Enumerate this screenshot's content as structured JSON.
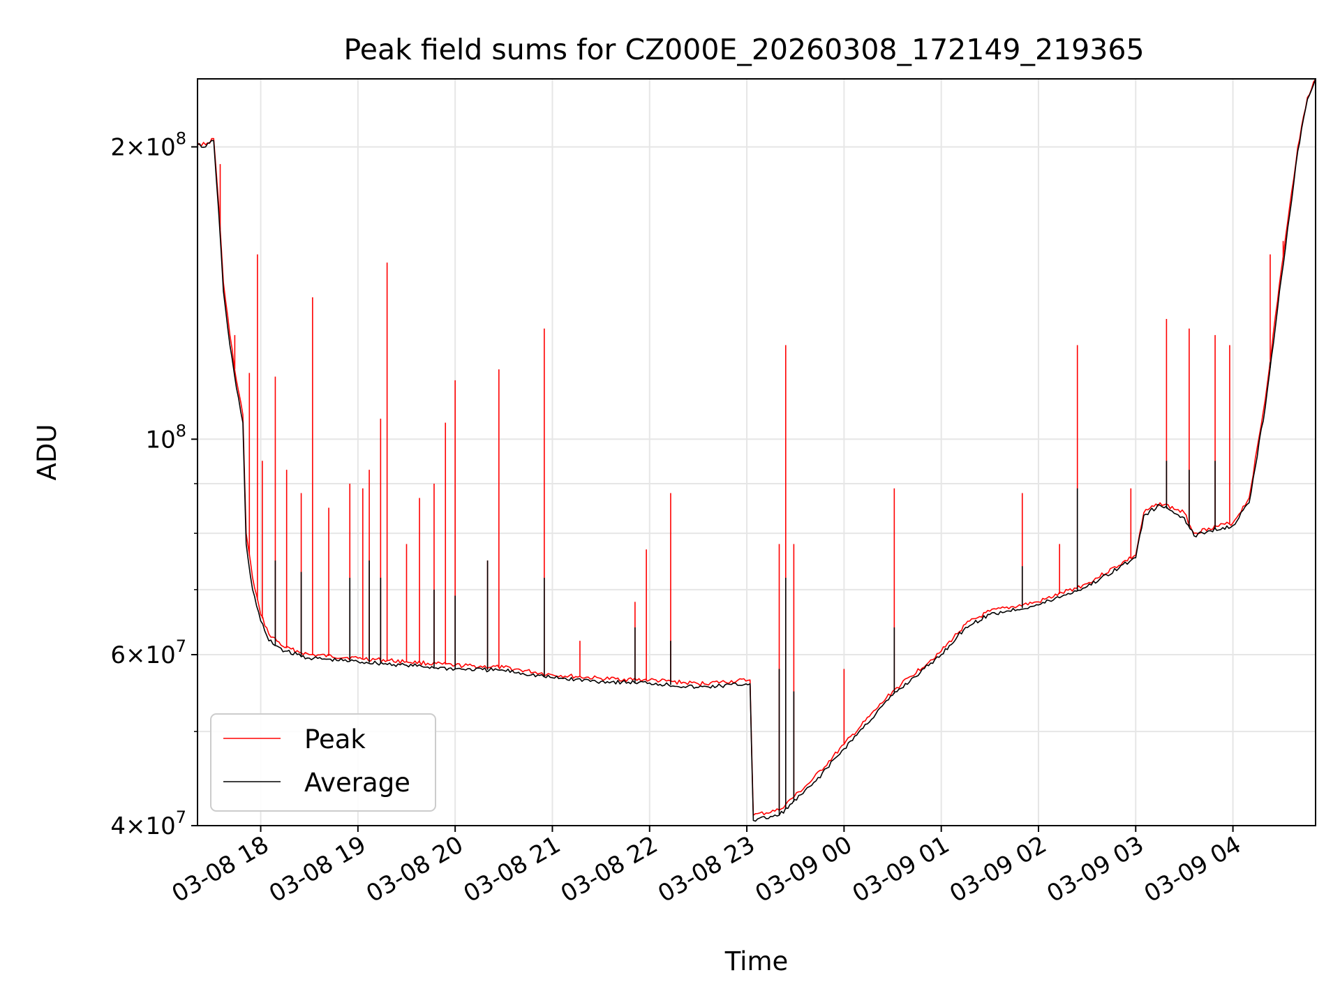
{
  "chart_data": {
    "type": "line",
    "title": "Peak field sums for CZ000E_20260308_172149_219365",
    "xlabel": "Time",
    "ylabel": "ADU",
    "y_scale": "log",
    "ylim": [
      40000000,
      235000000
    ],
    "xlim": [
      "2026-03-08 17:21",
      "2026-03-09 04:51"
    ],
    "grid": true,
    "legend_position": "lower-left",
    "x_ticks": [
      {
        "t": "2026-03-08 18:00",
        "label": "03-08 18"
      },
      {
        "t": "2026-03-08 19:00",
        "label": "03-08 19"
      },
      {
        "t": "2026-03-08 20:00",
        "label": "03-08 20"
      },
      {
        "t": "2026-03-08 21:00",
        "label": "03-08 21"
      },
      {
        "t": "2026-03-08 22:00",
        "label": "03-08 22"
      },
      {
        "t": "2026-03-08 23:00",
        "label": "03-08 23"
      },
      {
        "t": "2026-03-09 00:00",
        "label": "03-09 00"
      },
      {
        "t": "2026-03-09 01:00",
        "label": "03-09 01"
      },
      {
        "t": "2026-03-09 02:00",
        "label": "03-09 02"
      },
      {
        "t": "2026-03-09 03:00",
        "label": "03-09 03"
      },
      {
        "t": "2026-03-09 04:00",
        "label": "03-09 04"
      }
    ],
    "y_ticks": [
      {
        "value": 40000000,
        "mantissa": "4",
        "exp": "7"
      },
      {
        "value": 60000000,
        "mantissa": "6",
        "exp": "7"
      },
      {
        "value": 100000000,
        "mantissa": "",
        "exp": "8"
      },
      {
        "value": 200000000,
        "mantissa": "2",
        "exp": "8"
      }
    ],
    "y_minor_ticks": [
      50000000,
      70000000,
      80000000,
      90000000
    ],
    "series": [
      {
        "name": "Peak",
        "color": "#ff0000",
        "baseline": [
          [
            "2026-03-08 17:21",
            202000000
          ],
          [
            "2026-03-08 17:26",
            201000000
          ],
          [
            "2026-03-08 17:31",
            204000000
          ],
          [
            "2026-03-08 17:34",
            175000000
          ],
          [
            "2026-03-08 17:37",
            145000000
          ],
          [
            "2026-03-08 17:41",
            128000000
          ],
          [
            "2026-03-08 17:45",
            115000000
          ],
          [
            "2026-03-08 17:49",
            106000000
          ],
          [
            "2026-03-08 17:51",
            80000000
          ],
          [
            "2026-03-08 17:55",
            72000000
          ],
          [
            "2026-03-08 18:00",
            66000000
          ],
          [
            "2026-03-08 18:05",
            63000000
          ],
          [
            "2026-03-08 18:15",
            61000000
          ],
          [
            "2026-03-08 18:30",
            60000000
          ],
          [
            "2026-03-08 19:00",
            59500000
          ],
          [
            "2026-03-08 19:30",
            59000000
          ],
          [
            "2026-03-08 20:00",
            58500000
          ],
          [
            "2026-03-08 20:30",
            58200000
          ],
          [
            "2026-03-08 21:00",
            57200000
          ],
          [
            "2026-03-08 21:30",
            56700000
          ],
          [
            "2026-03-08 22:00",
            56500000
          ],
          [
            "2026-03-08 22:30",
            56000000
          ],
          [
            "2026-03-08 23:02",
            56500000
          ],
          [
            "2026-03-08 23:04",
            41000000
          ],
          [
            "2026-03-08 23:20",
            41500000
          ],
          [
            "2026-03-08 23:40",
            44500000
          ],
          [
            "2026-03-09 00:00",
            48500000
          ],
          [
            "2026-03-09 00:30",
            55000000
          ],
          [
            "2026-03-09 01:00",
            60500000
          ],
          [
            "2026-03-09 01:15",
            64500000
          ],
          [
            "2026-03-09 01:30",
            66500000
          ],
          [
            "2026-03-09 02:00",
            68000000
          ],
          [
            "2026-03-09 02:30",
            71000000
          ],
          [
            "2026-03-09 03:00",
            76000000
          ],
          [
            "2026-03-09 03:05",
            84000000
          ],
          [
            "2026-03-09 03:15",
            86000000
          ],
          [
            "2026-03-09 03:30",
            84000000
          ],
          [
            "2026-03-09 03:36",
            80000000
          ],
          [
            "2026-03-09 03:45",
            81000000
          ],
          [
            "2026-03-09 04:00",
            82000000
          ],
          [
            "2026-03-09 04:10",
            87000000
          ],
          [
            "2026-03-09 04:20",
            110000000
          ],
          [
            "2026-03-09 04:30",
            150000000
          ],
          [
            "2026-03-09 04:40",
            200000000
          ],
          [
            "2026-03-09 04:46",
            225000000
          ],
          [
            "2026-03-09 04:51",
            235000000
          ]
        ],
        "spikes": [
          [
            "2026-03-08 17:35",
            192000000
          ],
          [
            "2026-03-08 17:44",
            128000000
          ],
          [
            "2026-03-08 17:53",
            117000000
          ],
          [
            "2026-03-08 17:58",
            155000000
          ],
          [
            "2026-03-08 18:01",
            95000000
          ],
          [
            "2026-03-08 18:09",
            116000000
          ],
          [
            "2026-03-08 18:16",
            93000000
          ],
          [
            "2026-03-08 18:25",
            88000000
          ],
          [
            "2026-03-08 18:32",
            140000000
          ],
          [
            "2026-03-08 18:42",
            85000000
          ],
          [
            "2026-03-08 18:55",
            90000000
          ],
          [
            "2026-03-08 19:03",
            89000000
          ],
          [
            "2026-03-08 19:07",
            93000000
          ],
          [
            "2026-03-08 19:14",
            105000000
          ],
          [
            "2026-03-08 19:18",
            152000000
          ],
          [
            "2026-03-08 19:30",
            78000000
          ],
          [
            "2026-03-08 19:38",
            87000000
          ],
          [
            "2026-03-08 19:47",
            90000000
          ],
          [
            "2026-03-08 19:54",
            104000000
          ],
          [
            "2026-03-08 20:00",
            115000000
          ],
          [
            "2026-03-08 20:20",
            75000000
          ],
          [
            "2026-03-08 20:27",
            118000000
          ],
          [
            "2026-03-08 20:55",
            130000000
          ],
          [
            "2026-03-08 21:17",
            62000000
          ],
          [
            "2026-03-08 21:51",
            68000000
          ],
          [
            "2026-03-08 21:58",
            77000000
          ],
          [
            "2026-03-08 22:13",
            88000000
          ],
          [
            "2026-03-08 23:20",
            78000000
          ],
          [
            "2026-03-08 23:24",
            125000000
          ],
          [
            "2026-03-08 23:29",
            78000000
          ],
          [
            "2026-03-09 00:00",
            58000000
          ],
          [
            "2026-03-09 00:31",
            89000000
          ],
          [
            "2026-03-09 01:50",
            88000000
          ],
          [
            "2026-03-09 02:13",
            78000000
          ],
          [
            "2026-03-09 02:24",
            125000000
          ],
          [
            "2026-03-09 02:57",
            89000000
          ],
          [
            "2026-03-09 03:19",
            133000000
          ],
          [
            "2026-03-09 03:33",
            130000000
          ],
          [
            "2026-03-09 03:49",
            128000000
          ],
          [
            "2026-03-09 03:58",
            125000000
          ],
          [
            "2026-03-09 04:23",
            155000000
          ],
          [
            "2026-03-09 04:31",
            160000000
          ]
        ]
      },
      {
        "name": "Average",
        "color": "#000000",
        "baseline": [
          [
            "2026-03-08 17:21",
            201000000
          ],
          [
            "2026-03-08 17:26",
            200000000
          ],
          [
            "2026-03-08 17:31",
            203000000
          ],
          [
            "2026-03-08 17:34",
            172000000
          ],
          [
            "2026-03-08 17:37",
            142000000
          ],
          [
            "2026-03-08 17:41",
            125000000
          ],
          [
            "2026-03-08 17:45",
            113000000
          ],
          [
            "2026-03-08 17:49",
            104000000
          ],
          [
            "2026-03-08 17:51",
            78000000
          ],
          [
            "2026-03-08 17:55",
            70000000
          ],
          [
            "2026-03-08 18:00",
            65000000
          ],
          [
            "2026-03-08 18:05",
            62000000
          ],
          [
            "2026-03-08 18:15",
            60500000
          ],
          [
            "2026-03-08 18:30",
            59500000
          ],
          [
            "2026-03-08 19:00",
            59000000
          ],
          [
            "2026-03-08 19:30",
            58500000
          ],
          [
            "2026-03-08 20:00",
            58000000
          ],
          [
            "2026-03-08 20:30",
            57800000
          ],
          [
            "2026-03-08 21:00",
            56800000
          ],
          [
            "2026-03-08 21:30",
            56300000
          ],
          [
            "2026-03-08 22:00",
            56100000
          ],
          [
            "2026-03-08 22:30",
            55500000
          ],
          [
            "2026-03-08 23:02",
            56000000
          ],
          [
            "2026-03-08 23:04",
            40500000
          ],
          [
            "2026-03-08 23:20",
            41000000
          ],
          [
            "2026-03-08 23:40",
            44000000
          ],
          [
            "2026-03-09 00:00",
            48000000
          ],
          [
            "2026-03-09 00:30",
            54500000
          ],
          [
            "2026-03-09 01:00",
            60000000
          ],
          [
            "2026-03-09 01:15",
            64000000
          ],
          [
            "2026-03-09 01:30",
            66000000
          ],
          [
            "2026-03-09 02:00",
            67500000
          ],
          [
            "2026-03-09 02:30",
            70500000
          ],
          [
            "2026-03-09 03:00",
            75500000
          ],
          [
            "2026-03-09 03:05",
            83500000
          ],
          [
            "2026-03-09 03:15",
            85500000
          ],
          [
            "2026-03-09 03:30",
            83000000
          ],
          [
            "2026-03-09 03:36",
            79500000
          ],
          [
            "2026-03-09 03:45",
            80500000
          ],
          [
            "2026-03-09 04:00",
            81500000
          ],
          [
            "2026-03-09 04:10",
            86000000
          ],
          [
            "2026-03-09 04:20",
            108000000
          ],
          [
            "2026-03-09 04:30",
            147000000
          ],
          [
            "2026-03-09 04:40",
            198000000
          ],
          [
            "2026-03-09 04:46",
            224000000
          ],
          [
            "2026-03-09 04:51",
            235000000
          ]
        ],
        "spikes": [
          [
            "2026-03-08 18:09",
            75000000
          ],
          [
            "2026-03-08 18:25",
            73000000
          ],
          [
            "2026-03-08 18:55",
            72000000
          ],
          [
            "2026-03-08 19:07",
            75000000
          ],
          [
            "2026-03-08 19:14",
            72000000
          ],
          [
            "2026-03-08 19:47",
            70000000
          ],
          [
            "2026-03-08 20:00",
            69000000
          ],
          [
            "2026-03-08 20:20",
            75000000
          ],
          [
            "2026-03-08 20:55",
            72000000
          ],
          [
            "2026-03-08 21:51",
            64000000
          ],
          [
            "2026-03-08 22:13",
            62000000
          ],
          [
            "2026-03-08 23:20",
            58000000
          ],
          [
            "2026-03-08 23:24",
            72000000
          ],
          [
            "2026-03-08 23:29",
            55000000
          ],
          [
            "2026-03-09 00:31",
            64000000
          ],
          [
            "2026-03-09 01:50",
            74000000
          ],
          [
            "2026-03-09 02:24",
            89000000
          ],
          [
            "2026-03-09 03:19",
            95000000
          ],
          [
            "2026-03-09 03:33",
            93000000
          ],
          [
            "2026-03-09 03:49",
            95000000
          ],
          [
            "2026-03-09 04:23",
            120000000
          ]
        ]
      }
    ]
  }
}
